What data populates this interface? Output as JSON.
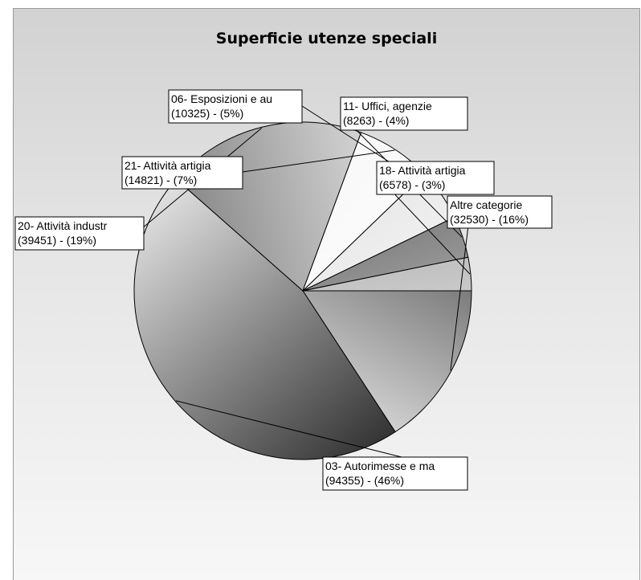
{
  "chart_data": {
    "type": "pie",
    "title": "Superficie utenze speciali",
    "slices": [
      {
        "label": "Altre categorie",
        "value": 32530,
        "percent": "16%",
        "text": "(32530) - (16%)"
      },
      {
        "label": "03- Autorimesse e ma",
        "value": 94355,
        "percent": "46%",
        "text": "(94355) - (46%)"
      },
      {
        "label": "20- Attività industr",
        "value": 39451,
        "percent": "19%",
        "text": "(39451) - (19%)"
      },
      {
        "label": "21- Attività artigia",
        "value": 14821,
        "percent": "7%",
        "text": "(14821) - (7%)"
      },
      {
        "label": "06- Esposizioni e au",
        "value": 10325,
        "percent": "5%",
        "text": "(10325) - (5%)"
      },
      {
        "label": "11- Uffici, agenzie",
        "value": 8263,
        "percent": "4%",
        "text": "(8263) - (4%)"
      },
      {
        "label": "18- Attività artigia",
        "value": 6578,
        "percent": "3%",
        "text": "(6578) - (3%)"
      }
    ],
    "start_angle_deg": 0,
    "direction": "clockwise",
    "colors": {
      "outline": "#000000",
      "label_bg": "#ffffff",
      "label_border": "#000000"
    }
  }
}
